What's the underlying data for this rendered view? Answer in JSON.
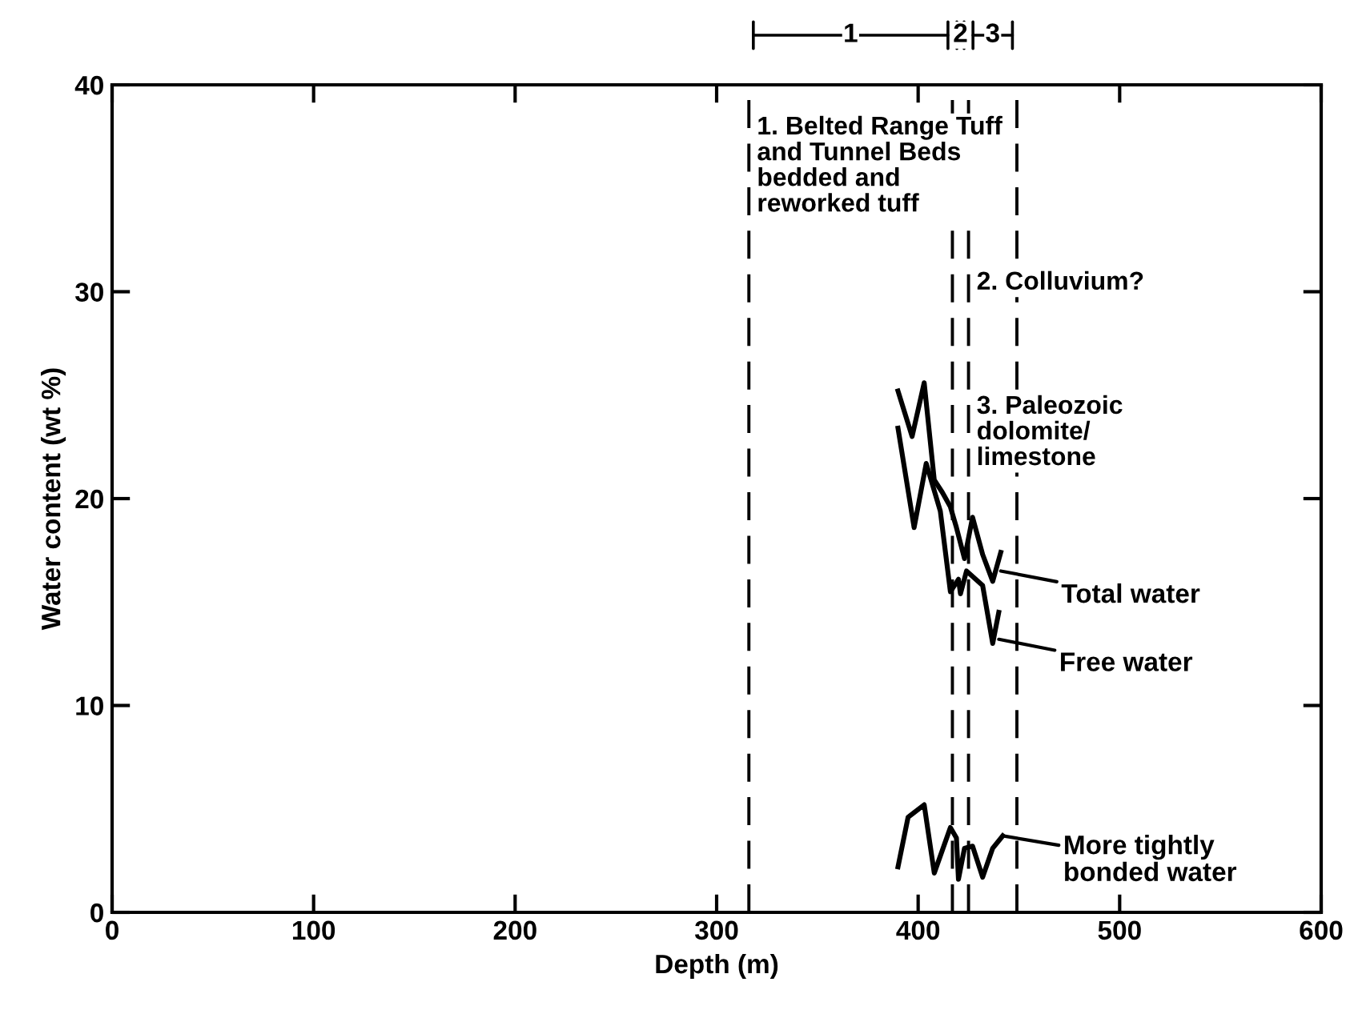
{
  "chart_data": {
    "type": "line",
    "xlabel": "Depth (m)",
    "ylabel": "Water content (wt %)",
    "xlim": [
      0,
      600
    ],
    "xticks": [
      0,
      100,
      200,
      300,
      400,
      500,
      600
    ],
    "ylim": [
      0,
      40
    ],
    "yticks": [
      0,
      10,
      20,
      30,
      40
    ],
    "grid": false,
    "marker": "none",
    "line_style": "solid",
    "series": [
      {
        "color": "#000000",
        "x": [
          390,
          397,
          403,
          408,
          412,
          416,
          419,
          423,
          427,
          432,
          437,
          441
        ],
        "values": [
          25.2,
          23.0,
          25.6,
          20.9,
          20.3,
          19.6,
          18.6,
          17.1,
          19.1,
          17.3,
          16.0,
          17.4
        ]
      },
      {
        "color": "#000000",
        "x": [
          390,
          398,
          404,
          411,
          416,
          420,
          421,
          424,
          432,
          437,
          440
        ],
        "values": [
          23.4,
          18.6,
          21.7,
          19.4,
          15.5,
          16.1,
          15.4,
          16.5,
          15.8,
          13.0,
          14.5
        ]
      },
      {
        "color": "#000000",
        "x": [
          390,
          395,
          403,
          408,
          416,
          419,
          420,
          423,
          427,
          432,
          437,
          442
        ],
        "values": [
          2.2,
          4.6,
          5.2,
          1.9,
          4.1,
          3.6,
          1.6,
          3.1,
          3.2,
          1.7,
          3.1,
          3.7
        ]
      }
    ],
    "ref_lines": [
      {
        "axis": "x",
        "value": 316,
        "line_style": "dashed",
        "color": "#000000"
      },
      {
        "axis": "x",
        "value": 417,
        "line_style": "dashed",
        "color": "#000000"
      },
      {
        "axis": "x",
        "value": 425,
        "line_style": "dashed",
        "color": "#000000"
      },
      {
        "axis": "x",
        "value": 449,
        "line_style": "dashed",
        "color": "#000000"
      }
    ],
    "annotations": [
      "1",
      "2",
      "3",
      {
        "text": "1. Belted Range Tuff\nand Tunnel Beds\nbedded and\nreworked tuff",
        "x": 316,
        "y": 38.5
      },
      {
        "text": "2. Colluvium?",
        "x": 425,
        "y": 31
      },
      {
        "text": "3. Paleozoic\ndolomite/\nlimestone",
        "x": 425,
        "y": 25
      },
      {
        "text": "Total water",
        "x": 441,
        "y": 16.5
      },
      {
        "text": "Free water",
        "x": 440,
        "y": 13.2
      },
      {
        "text": "More tightly\nbonded water",
        "x": 442,
        "y": 3.7
      }
    ]
  }
}
